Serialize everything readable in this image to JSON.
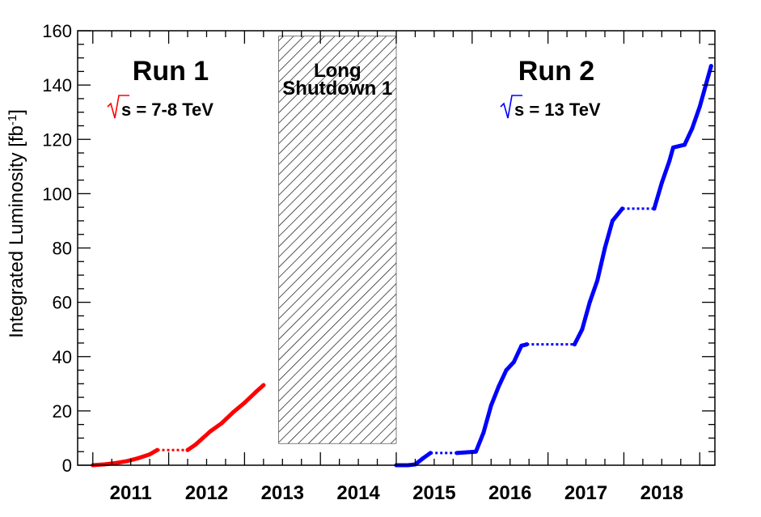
{
  "chart_data": {
    "type": "line",
    "title": "",
    "xlabel": "",
    "ylabel": "Integrated Luminosity [fb",
    "ylabel_superscript": "-1",
    "ylabel_close": "]",
    "xlim": [
      2010.8,
      2019.2
    ],
    "ylim": [
      0,
      160
    ],
    "grid": false,
    "x_tick_labels": [
      "2011",
      "2012",
      "2013",
      "2014",
      "2015",
      "2016",
      "2017",
      "2018"
    ],
    "y_tick_labels": [
      "0",
      "20",
      "40",
      "60",
      "80",
      "100",
      "120",
      "140",
      "160"
    ],
    "series": [
      {
        "name": "Run 1",
        "color": "#ff0000",
        "x": [
          2011.0,
          2011.15,
          2011.3,
          2011.45,
          2011.6,
          2011.75,
          2011.85,
          2012.25,
          2012.35,
          2012.45,
          2012.55,
          2012.7,
          2012.85,
          2013.0,
          2013.15,
          2013.25
        ],
        "y": [
          0,
          0.3,
          0.8,
          1.5,
          2.6,
          4.0,
          5.6,
          5.6,
          7.5,
          10.0,
          12.5,
          15.5,
          19.5,
          23.0,
          27.0,
          29.5
        ]
      },
      {
        "name": "Run 2",
        "color": "#0000ff",
        "x": [
          2015.0,
          2015.15,
          2015.25,
          2015.35,
          2015.45,
          2015.8,
          2016.05,
          2016.15,
          2016.25,
          2016.35,
          2016.45,
          2016.55,
          2016.65,
          2016.72,
          2017.35,
          2017.45,
          2017.55,
          2017.65,
          2017.75,
          2017.85,
          2017.98,
          2018.4,
          2018.5,
          2018.6,
          2018.65,
          2018.8,
          2018.9,
          2019.0,
          2019.08,
          2019.15
        ],
        "y": [
          0,
          0,
          0.3,
          2.5,
          4.5,
          4.5,
          5.0,
          12.0,
          22.0,
          29.0,
          35.0,
          38.0,
          44.0,
          44.5,
          44.5,
          50.0,
          60.0,
          68.0,
          80.0,
          90.0,
          94.5,
          94.5,
          104.0,
          112.0,
          117.0,
          118.0,
          124.0,
          132.0,
          140.0,
          147.0
        ]
      }
    ],
    "dotted_gaps": [
      {
        "series": "Run 1",
        "x": [
          2011.85,
          2012.25
        ],
        "y": 5.6
      },
      {
        "series": "Run 2",
        "x": [
          2015.45,
          2015.8
        ],
        "y": 4.5
      },
      {
        "series": "Run 2",
        "x": [
          2016.72,
          2017.35
        ],
        "y": 44.5
      },
      {
        "series": "Run 2",
        "x": [
          2017.98,
          2018.4
        ],
        "y": 94.5
      }
    ],
    "shaded_region": {
      "label_line1": "Long",
      "label_line2": "Shutdown 1",
      "x": [
        2013.45,
        2015.0
      ],
      "y": [
        8,
        158
      ]
    },
    "annotations": [
      {
        "text": "Run 1",
        "sub": "s = 7-8 TeV",
        "color": "#ff0000"
      },
      {
        "text": "Run 2",
        "sub": "s = 13 TeV",
        "color": "#0000ff"
      }
    ]
  }
}
